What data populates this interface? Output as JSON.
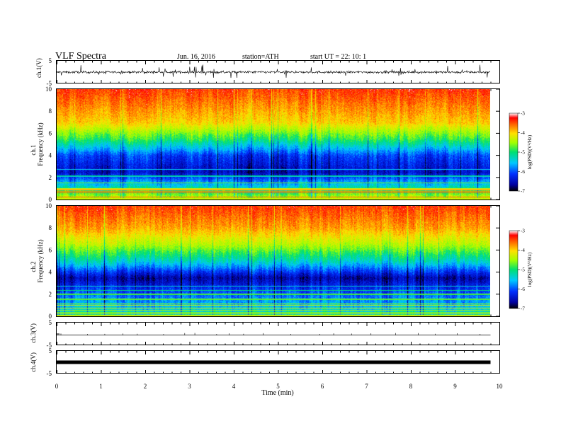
{
  "header": {
    "title": "VLF  Spectra",
    "date": "Jun. 16, 2016",
    "station": "station=ATH",
    "start": "start  UT  =    22: 10: 1"
  },
  "chart_data": {
    "type": "heatmap",
    "xlabel": "Time  (min)",
    "xlim": [
      0,
      10
    ],
    "x_ticks": [
      "0",
      "1",
      "2",
      "3",
      "4",
      "5",
      "6",
      "7",
      "8",
      "9",
      "10"
    ],
    "data_end_min": 9.8,
    "panels": [
      {
        "name": "ch.1(V)",
        "type": "line",
        "ylim": [
          -5,
          5
        ],
        "y_ticks": [
          "5",
          "-5"
        ]
      },
      {
        "name": "ch.1",
        "type": "spectrogram",
        "ylabel": "Frequency  (kHz)",
        "ylim": [
          0,
          10
        ],
        "y_ticks": [
          "0",
          "2",
          "4",
          "6",
          "8",
          "10"
        ],
        "colorbar": {
          "label": "log(PSD)(V²/Hz)",
          "range": [
            -7,
            -3
          ],
          "ticks": [
            "-3",
            "-4",
            "-5",
            "-6",
            "-7"
          ]
        },
        "profile": [
          {
            "freq_khz": 0.0,
            "log_psd": -4.2
          },
          {
            "freq_khz": 1.5,
            "log_psd": -5.6
          },
          {
            "freq_khz": 2.5,
            "log_psd": -6.5
          },
          {
            "freq_khz": 4.0,
            "log_psd": -6.1
          },
          {
            "freq_khz": 5.5,
            "log_psd": -4.9
          },
          {
            "freq_khz": 7.0,
            "log_psd": -4.0
          },
          {
            "freq_khz": 10.0,
            "log_psd": -3.4
          }
        ]
      },
      {
        "name": "ch.2",
        "type": "spectrogram",
        "ylabel": "Frequency  (kHz)",
        "ylim": [
          0,
          10
        ],
        "y_ticks": [
          "0",
          "2",
          "4",
          "6",
          "8",
          "10"
        ],
        "colorbar": {
          "label": "log(PSD)(V²/Hz)",
          "range": [
            -7,
            -3
          ],
          "ticks": [
            "-3",
            "-4",
            "-5",
            "-6",
            "-7"
          ]
        },
        "profile": [
          {
            "freq_khz": 0.0,
            "log_psd": -5.2
          },
          {
            "freq_khz": 2.0,
            "log_psd": -5.9
          },
          {
            "freq_khz": 3.5,
            "log_psd": -6.6
          },
          {
            "freq_khz": 5.0,
            "log_psd": -5.3
          },
          {
            "freq_khz": 6.5,
            "log_psd": -4.4
          },
          {
            "freq_khz": 8.0,
            "log_psd": -3.8
          },
          {
            "freq_khz": 10.0,
            "log_psd": -3.4
          }
        ]
      },
      {
        "name": "ch.3(V)",
        "type": "line",
        "ylim": [
          -5,
          5
        ],
        "y_ticks": [
          "5",
          "-5"
        ],
        "level_v": -0.5
      },
      {
        "name": "ch.4(V)",
        "type": "line",
        "ylim": [
          -5,
          5
        ],
        "y_ticks": [
          "5",
          "-5"
        ],
        "level_v": 0.0
      }
    ]
  }
}
